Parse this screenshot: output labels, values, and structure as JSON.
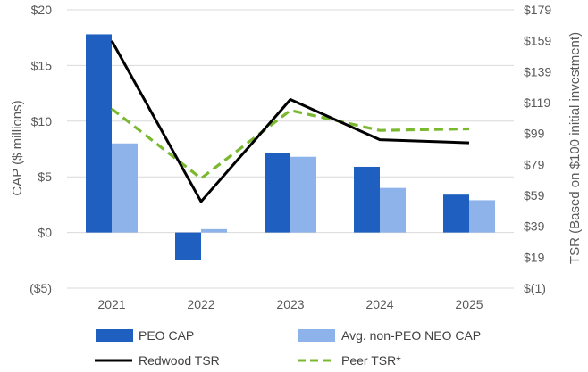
{
  "chart_data": {
    "type": "bar",
    "categories": [
      "2021",
      "2022",
      "2023",
      "2024",
      "2025"
    ],
    "bar_series": [
      {
        "name": "PEO CAP",
        "color": "#1f5fbf",
        "values": [
          17.8,
          -2.5,
          7.1,
          5.9,
          3.4
        ]
      },
      {
        "name": "Avg. non-PEO NEO CAP",
        "color": "#8db3ea",
        "values": [
          8.0,
          0.3,
          6.8,
          4.0,
          2.9
        ]
      }
    ],
    "line_series": [
      {
        "name": "Redwood TSR",
        "color": "#000000",
        "dash": "solid",
        "values": [
          159,
          55,
          121,
          95,
          93
        ]
      },
      {
        "name": "Peer TSR*",
        "color": "#7ab92f",
        "dash": "dashed",
        "values": [
          115,
          70,
          114,
          101,
          102
        ]
      }
    ],
    "y_left": {
      "label": "CAP ($ millions)",
      "range": [
        -5,
        20
      ],
      "ticks": [
        20,
        15,
        10,
        5,
        0,
        -5
      ],
      "tick_labels": [
        "$20",
        "$15",
        "$10",
        "$5",
        "$0",
        "($5)"
      ]
    },
    "y_right": {
      "label": "TSR (Based on $100 initial investment)",
      "range": [
        -1,
        179
      ],
      "ticks": [
        179,
        159,
        139,
        119,
        99,
        79,
        59,
        39,
        19,
        -1
      ],
      "tick_labels": [
        "$179",
        "$159",
        "$139",
        "$119",
        "$99",
        "$79",
        "$59",
        "$39",
        "$19",
        "$(1)"
      ]
    },
    "grid": true,
    "legend_position": "bottom"
  }
}
